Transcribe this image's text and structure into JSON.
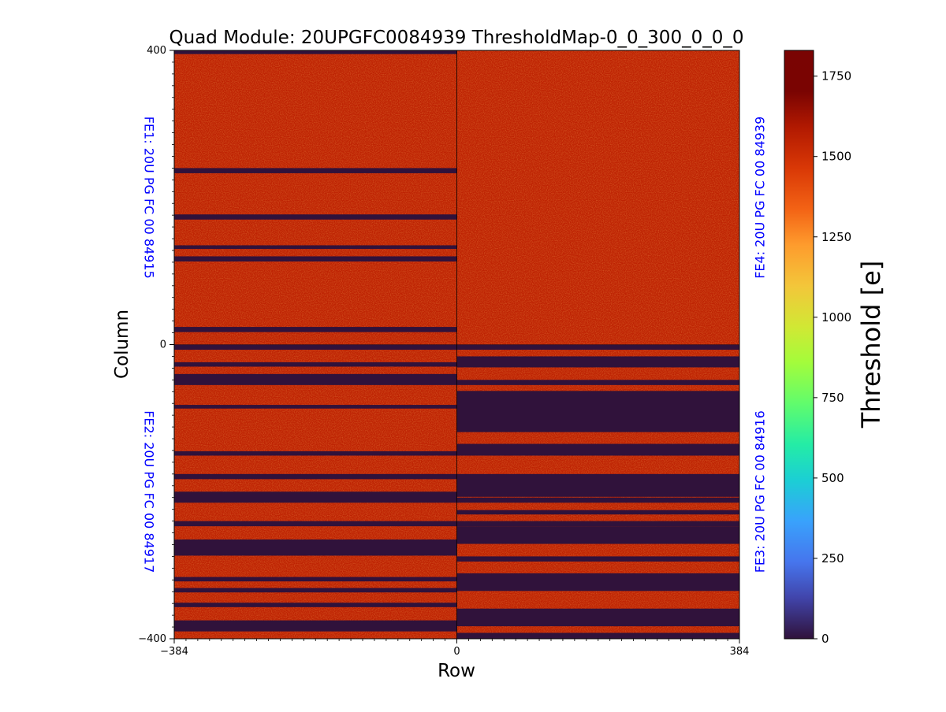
{
  "chart_data": {
    "type": "heatmap",
    "title": "Quad Module: 20UPGFC0084939 ThresholdMap-0_0_300_0_0_0",
    "xlabel": "Row",
    "ylabel": "Column",
    "xlim": [
      -384,
      384
    ],
    "ylim": [
      -400,
      400
    ],
    "x_ticks": [
      "−384",
      "0",
      "384"
    ],
    "y_ticks": [
      "400",
      "0",
      "−400"
    ],
    "colorbar": {
      "label": "Threshold [e]",
      "range": [
        0,
        1830
      ],
      "colormap": "turbo",
      "ticks": [
        "0",
        "250",
        "500",
        "750",
        "1000",
        "1250",
        "1500",
        "1750"
      ]
    },
    "nominal_threshold_e": 1550,
    "dead_value_e": 0,
    "front_ends": [
      {
        "name": "FE1",
        "label": "FE1: 20U PG FC 00 84915",
        "x_range": [
          -384,
          0
        ],
        "y_range": [
          0,
          400
        ],
        "label_side": "left",
        "label_rotation": "down",
        "dead_column_bands": [
          [
            395,
            400
          ],
          [
            233,
            240
          ],
          [
            170,
            177
          ],
          [
            130,
            135
          ],
          [
            113,
            120
          ],
          [
            17,
            24
          ]
        ]
      },
      {
        "name": "FE2",
        "label": "FE2: 20U PG FC 00 84917",
        "x_range": [
          -384,
          0
        ],
        "y_range": [
          -400,
          0
        ],
        "label_side": "left",
        "label_rotation": "down",
        "dead_column_bands": [
          [
            -7,
            0
          ],
          [
            -30,
            -24
          ],
          [
            -55,
            -40
          ],
          [
            -87,
            -82
          ],
          [
            -151,
            -145
          ],
          [
            -183,
            -176
          ],
          [
            -215,
            -200
          ],
          [
            -247,
            -240
          ],
          [
            -287,
            -265
          ],
          [
            -322,
            -316
          ],
          [
            -337,
            -331
          ],
          [
            -357,
            -351
          ],
          [
            -390,
            -375
          ]
        ]
      },
      {
        "name": "FE3",
        "label": "FE3: 20U PG FC 00 84916",
        "x_range": [
          0,
          384
        ],
        "y_range": [
          -400,
          0
        ],
        "label_side": "right",
        "label_rotation": "up",
        "dead_column_bands": [
          [
            -7,
            0
          ],
          [
            -31,
            -16
          ],
          [
            -55,
            -48
          ],
          [
            -119,
            -63
          ],
          [
            -151,
            -135
          ],
          [
            -207,
            -176
          ],
          [
            -215,
            -208
          ],
          [
            -231,
            -225
          ],
          [
            -247,
            -240
          ],
          [
            -271,
            -247
          ],
          [
            -295,
            -288
          ],
          [
            -335,
            -311
          ],
          [
            -383,
            -359
          ],
          [
            -400,
            -392
          ]
        ]
      },
      {
        "name": "FE4",
        "label": "FE4: 20U PG FC 00 84939",
        "x_range": [
          0,
          384
        ],
        "y_range": [
          0,
          400
        ],
        "label_side": "right",
        "label_rotation": "up",
        "dead_column_bands": []
      }
    ]
  }
}
